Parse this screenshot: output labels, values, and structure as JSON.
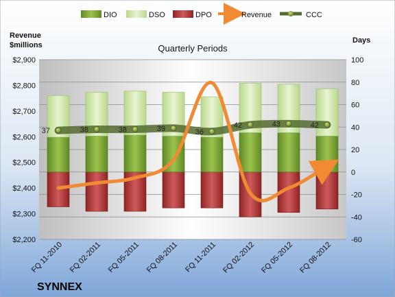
{
  "company": "SYNNEX",
  "chart_data": {
    "type": "bar",
    "title": "Quarterly Periods",
    "y_left_label_line1": "Revenue",
    "y_left_label_line2": "$millions",
    "y_right_label": "Days",
    "categories": [
      "FQ 11-2010",
      "FQ 02-2011",
      "FQ 05-2011",
      "FQ 08-2011",
      "FQ 11-2011",
      "FQ 02-2012",
      "FQ 05-2012",
      "FQ 08-2012"
    ],
    "left_axis": {
      "min": 2200,
      "max": 2900,
      "step": 100,
      "ticks": [
        "$2,200",
        "$2,300",
        "$2,400",
        "$2,500",
        "$2,600",
        "$2,700",
        "$2,800",
        "$2,900"
      ]
    },
    "right_axis": {
      "min": -60,
      "max": 100,
      "step": 20,
      "ticks": [
        "-60",
        "-40",
        "-20",
        "0",
        "20",
        "40",
        "60",
        "80",
        "100"
      ]
    },
    "series": [
      {
        "name": "DIO",
        "axis": "right",
        "kind": "stacked-bar-positive",
        "color": "#7ea437",
        "values": [
          31,
          32,
          33,
          32,
          31,
          35,
          35,
          32
        ]
      },
      {
        "name": "DSO",
        "axis": "right",
        "kind": "stacked-bar-positive",
        "color": "#d2e8a9",
        "values": [
          37,
          39,
          39,
          39,
          36,
          44,
          43,
          42
        ]
      },
      {
        "name": "DPO",
        "axis": "right",
        "kind": "bar-negative",
        "color": "#b33b3b",
        "values": [
          -31,
          -35,
          -35,
          -32,
          -32,
          -40,
          -36,
          -33
        ]
      },
      {
        "name": "Revenue",
        "axis": "left",
        "kind": "line",
        "color": "#f08a33",
        "values": [
          2400,
          2420,
          2440,
          2510,
          2810,
          2380,
          2400,
          2485
        ]
      },
      {
        "name": "CCC",
        "axis": "right",
        "kind": "line-markers",
        "color": "#556b2f",
        "values": [
          37,
          38,
          38,
          39,
          36,
          42,
          43,
          42
        ],
        "labels": [
          "37",
          "38",
          "38",
          "39",
          "36",
          "42",
          "43",
          "42"
        ]
      }
    ],
    "legend": {
      "placement": "top",
      "items": [
        "DIO",
        "DSO",
        "DPO",
        "Revenue",
        "CCC"
      ]
    },
    "grid": true
  }
}
